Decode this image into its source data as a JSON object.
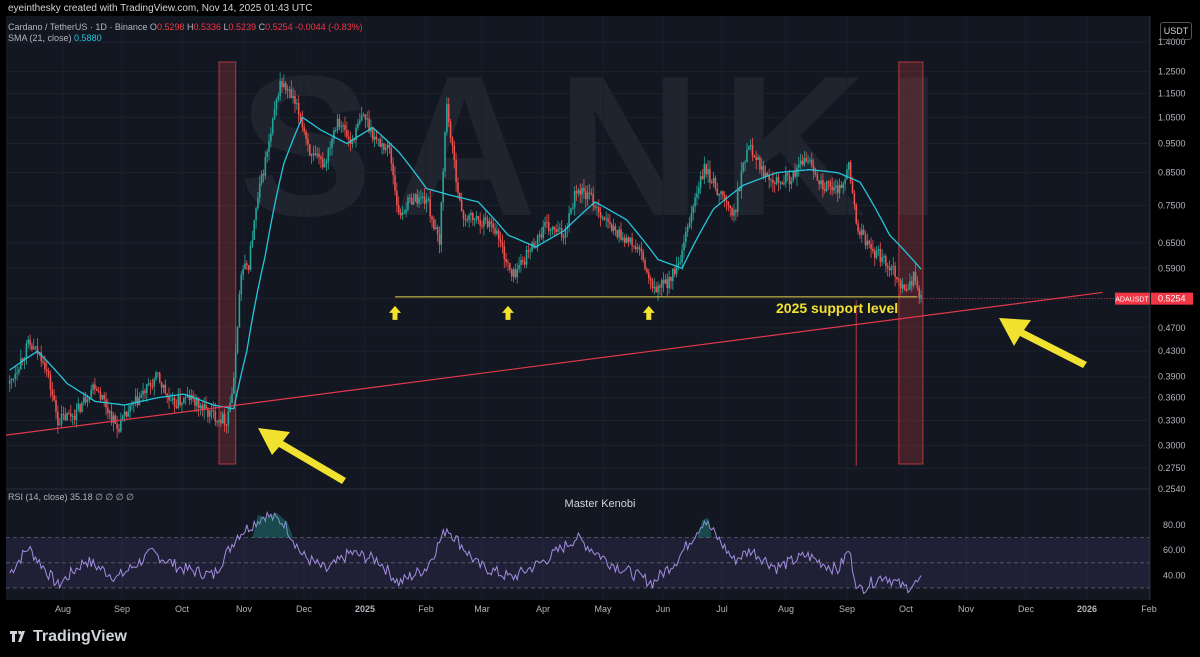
{
  "header": {
    "credit": "eyeinthesky created with TradingView.com, Nov 14, 2025 01:43 UTC",
    "symbol": "Cardano / TetherUS · 1D · Binance",
    "ohlc_open_label": "O",
    "ohlc_open": "0.5298",
    "ohlc_high_label": "H",
    "ohlc_high": "0.5336",
    "ohlc_low_label": "L",
    "ohlc_low": "0.5239",
    "ohlc_close_label": "C",
    "ohlc_close": "0.5254",
    "change": "-0.0044 (-0.83%)",
    "sma_label": "SMA (21, close)",
    "sma_value": "0.5880",
    "currency": "USDT"
  },
  "rsi": {
    "label": "RSI (14, close)",
    "value": "35.18",
    "extra": "∅ ∅ ∅ ∅",
    "watermark_text": "Master Kenobi",
    "levels": [
      "80.00",
      "60.00",
      "40.00"
    ]
  },
  "footer": {
    "logo": "TradingView"
  },
  "watermark": "SANKI",
  "colors": {
    "up": "#26a69a",
    "down": "#ef5350",
    "sma": "#26c6da",
    "trendline": "#e0384a",
    "support": "#e8d44d",
    "arrow": "#f2e230",
    "rsi_line": "#a48ee0",
    "highlight": "#b2383e"
  },
  "chart_data": {
    "type": "candlestick",
    "log_scale": true,
    "grid": true,
    "y_ticks": [
      "1.4000",
      "1.2500",
      "1.1500",
      "1.0500",
      "0.9500",
      "0.8500",
      "0.7500",
      "0.6500",
      "0.5900",
      "0.5254",
      "0.4700",
      "0.4300",
      "0.3900",
      "0.3600",
      "0.3300",
      "0.3000",
      "0.2750",
      "0.2540"
    ],
    "ylim": [
      0.254,
      1.4
    ],
    "x_ticks": [
      "Aug",
      "Sep",
      "Oct",
      "Nov",
      "Dec",
      "2025",
      "Feb",
      "Mar",
      "Apr",
      "May",
      "Jun",
      "Jul",
      "Aug",
      "Sep",
      "Oct",
      "Nov",
      "Dec",
      "2026",
      "Feb"
    ],
    "price_series": [
      {
        "date": "2024-07-10",
        "value": 0.38
      },
      {
        "date": "2024-07-20",
        "value": 0.44
      },
      {
        "date": "2024-07-28",
        "value": 0.42
      },
      {
        "date": "2024-08-05",
        "value": 0.33
      },
      {
        "date": "2024-08-15",
        "value": 0.34
      },
      {
        "date": "2024-08-25",
        "value": 0.38
      },
      {
        "date": "2024-09-06",
        "value": 0.32
      },
      {
        "date": "2024-09-15",
        "value": 0.35
      },
      {
        "date": "2024-09-28",
        "value": 0.39
      },
      {
        "date": "2024-10-05",
        "value": 0.35
      },
      {
        "date": "2024-10-15",
        "value": 0.36
      },
      {
        "date": "2024-10-25",
        "value": 0.34
      },
      {
        "date": "2024-11-04",
        "value": 0.33
      },
      {
        "date": "2024-11-08",
        "value": 0.38
      },
      {
        "date": "2024-11-12",
        "value": 0.58
      },
      {
        "date": "2024-11-16",
        "value": 0.6
      },
      {
        "date": "2024-11-22",
        "value": 0.8
      },
      {
        "date": "2024-11-28",
        "value": 0.98
      },
      {
        "date": "2024-12-03",
        "value": 1.2
      },
      {
        "date": "2024-12-08",
        "value": 1.15
      },
      {
        "date": "2024-12-14",
        "value": 1.05
      },
      {
        "date": "2024-12-20",
        "value": 0.9
      },
      {
        "date": "2024-12-27",
        "value": 0.88
      },
      {
        "date": "2025-01-03",
        "value": 1.05
      },
      {
        "date": "2025-01-10",
        "value": 0.95
      },
      {
        "date": "2025-01-17",
        "value": 1.06
      },
      {
        "date": "2025-01-24",
        "value": 0.96
      },
      {
        "date": "2025-01-31",
        "value": 0.93
      },
      {
        "date": "2025-02-05",
        "value": 0.72
      },
      {
        "date": "2025-02-12",
        "value": 0.77
      },
      {
        "date": "2025-02-20",
        "value": 0.77
      },
      {
        "date": "2025-02-27",
        "value": 0.64
      },
      {
        "date": "2025-03-03",
        "value": 1.1
      },
      {
        "date": "2025-03-06",
        "value": 0.92
      },
      {
        "date": "2025-03-11",
        "value": 0.72
      },
      {
        "date": "2025-03-20",
        "value": 0.71
      },
      {
        "date": "2025-03-28",
        "value": 0.7
      },
      {
        "date": "2025-04-07",
        "value": 0.57
      },
      {
        "date": "2025-04-15",
        "value": 0.62
      },
      {
        "date": "2025-04-25",
        "value": 0.69
      },
      {
        "date": "2025-05-05",
        "value": 0.67
      },
      {
        "date": "2025-05-12",
        "value": 0.8
      },
      {
        "date": "2025-05-20",
        "value": 0.77
      },
      {
        "date": "2025-05-30",
        "value": 0.69
      },
      {
        "date": "2025-06-05",
        "value": 0.67
      },
      {
        "date": "2025-06-15",
        "value": 0.63
      },
      {
        "date": "2025-06-22",
        "value": 0.54
      },
      {
        "date": "2025-06-30",
        "value": 0.56
      },
      {
        "date": "2025-07-07",
        "value": 0.6
      },
      {
        "date": "2025-07-14",
        "value": 0.75
      },
      {
        "date": "2025-07-20",
        "value": 0.86
      },
      {
        "date": "2025-07-28",
        "value": 0.79
      },
      {
        "date": "2025-08-05",
        "value": 0.72
      },
      {
        "date": "2025-08-13",
        "value": 0.96
      },
      {
        "date": "2025-08-20",
        "value": 0.86
      },
      {
        "date": "2025-08-28",
        "value": 0.83
      },
      {
        "date": "2025-09-05",
        "value": 0.83
      },
      {
        "date": "2025-09-13",
        "value": 0.9
      },
      {
        "date": "2025-09-22",
        "value": 0.81
      },
      {
        "date": "2025-09-30",
        "value": 0.79
      },
      {
        "date": "2025-10-06",
        "value": 0.87
      },
      {
        "date": "2025-10-10",
        "value": 0.7
      },
      {
        "date": "2025-10-15",
        "value": 0.65
      },
      {
        "date": "2025-10-22",
        "value": 0.62
      },
      {
        "date": "2025-10-30",
        "value": 0.59
      },
      {
        "date": "2025-11-05",
        "value": 0.54
      },
      {
        "date": "2025-11-10",
        "value": 0.57
      },
      {
        "date": "2025-11-14",
        "value": 0.5254
      }
    ],
    "sma_series": [
      {
        "date": "2024-07-10",
        "value": 0.4
      },
      {
        "date": "2024-07-25",
        "value": 0.43
      },
      {
        "date": "2024-08-10",
        "value": 0.38
      },
      {
        "date": "2024-08-25",
        "value": 0.355
      },
      {
        "date": "2024-09-10",
        "value": 0.35
      },
      {
        "date": "2024-09-28",
        "value": 0.36
      },
      {
        "date": "2024-10-12",
        "value": 0.365
      },
      {
        "date": "2024-10-28",
        "value": 0.35
      },
      {
        "date": "2024-11-08",
        "value": 0.345
      },
      {
        "date": "2024-11-15",
        "value": 0.43
      },
      {
        "date": "2024-11-25",
        "value": 0.62
      },
      {
        "date": "2024-12-05",
        "value": 0.88
      },
      {
        "date": "2024-12-15",
        "value": 1.05
      },
      {
        "date": "2024-12-25",
        "value": 1.0
      },
      {
        "date": "2025-01-08",
        "value": 0.95
      },
      {
        "date": "2025-01-22",
        "value": 1.01
      },
      {
        "date": "2025-02-05",
        "value": 0.92
      },
      {
        "date": "2025-02-20",
        "value": 0.8
      },
      {
        "date": "2025-03-05",
        "value": 0.78
      },
      {
        "date": "2025-03-20",
        "value": 0.76
      },
      {
        "date": "2025-04-05",
        "value": 0.67
      },
      {
        "date": "2025-04-20",
        "value": 0.64
      },
      {
        "date": "2025-05-05",
        "value": 0.68
      },
      {
        "date": "2025-05-22",
        "value": 0.76
      },
      {
        "date": "2025-06-08",
        "value": 0.71
      },
      {
        "date": "2025-06-25",
        "value": 0.61
      },
      {
        "date": "2025-07-08",
        "value": 0.59
      },
      {
        "date": "2025-07-25",
        "value": 0.74
      },
      {
        "date": "2025-08-10",
        "value": 0.81
      },
      {
        "date": "2025-08-28",
        "value": 0.85
      },
      {
        "date": "2025-09-15",
        "value": 0.86
      },
      {
        "date": "2025-09-30",
        "value": 0.85
      },
      {
        "date": "2025-10-12",
        "value": 0.82
      },
      {
        "date": "2025-10-28",
        "value": 0.67
      },
      {
        "date": "2025-11-14",
        "value": 0.588
      }
    ],
    "rsi_series": [
      {
        "date": "2024-07-10",
        "value": 42
      },
      {
        "date": "2024-07-20",
        "value": 62
      },
      {
        "date": "2024-08-05",
        "value": 32
      },
      {
        "date": "2024-08-20",
        "value": 52
      },
      {
        "date": "2024-09-06",
        "value": 38
      },
      {
        "date": "2024-09-25",
        "value": 58
      },
      {
        "date": "2024-10-10",
        "value": 46
      },
      {
        "date": "2024-10-28",
        "value": 40
      },
      {
        "date": "2024-11-10",
        "value": 72
      },
      {
        "date": "2024-11-25",
        "value": 88
      },
      {
        "date": "2024-12-05",
        "value": 82
      },
      {
        "date": "2024-12-15",
        "value": 56
      },
      {
        "date": "2024-12-28",
        "value": 44
      },
      {
        "date": "2025-01-10",
        "value": 58
      },
      {
        "date": "2025-01-25",
        "value": 52
      },
      {
        "date": "2025-02-05",
        "value": 34
      },
      {
        "date": "2025-02-20",
        "value": 46
      },
      {
        "date": "2025-03-03",
        "value": 78
      },
      {
        "date": "2025-03-20",
        "value": 48
      },
      {
        "date": "2025-04-07",
        "value": 38
      },
      {
        "date": "2025-04-25",
        "value": 52
      },
      {
        "date": "2025-05-12",
        "value": 70
      },
      {
        "date": "2025-05-30",
        "value": 50
      },
      {
        "date": "2025-06-22",
        "value": 34
      },
      {
        "date": "2025-07-05",
        "value": 52
      },
      {
        "date": "2025-07-20",
        "value": 84
      },
      {
        "date": "2025-08-05",
        "value": 52
      },
      {
        "date": "2025-08-14",
        "value": 60
      },
      {
        "date": "2025-08-28",
        "value": 46
      },
      {
        "date": "2025-09-13",
        "value": 56
      },
      {
        "date": "2025-09-30",
        "value": 44
      },
      {
        "date": "2025-10-06",
        "value": 60
      },
      {
        "date": "2025-10-11",
        "value": 28
      },
      {
        "date": "2025-10-25",
        "value": 40
      },
      {
        "date": "2025-11-05",
        "value": 30
      },
      {
        "date": "2025-11-14",
        "value": 35.18
      }
    ],
    "rsi_ylim": [
      22,
      92
    ],
    "annotations": {
      "support_text": "2025 support level",
      "support_price": 0.529,
      "support_start": "2025-02-03",
      "support_end": "2025-11-12",
      "support_arrow_dates": [
        "2025-02-03",
        "2025-04-05",
        "2025-06-20"
      ],
      "trendline": [
        {
          "date": "2024-07-08",
          "value": 0.312
        },
        {
          "date": "2026-02-20",
          "value": 0.538
        }
      ],
      "trendline_extension_from": "2025-11-14",
      "highlight_ranges": [
        [
          "2024-10-31",
          "2024-11-09"
        ],
        [
          "2025-11-02",
          "2025-11-15"
        ]
      ],
      "vertical_line_date": "2025-10-10",
      "price_label_symbol": "ADAUSDT",
      "price_label_value": "0.5254"
    }
  }
}
